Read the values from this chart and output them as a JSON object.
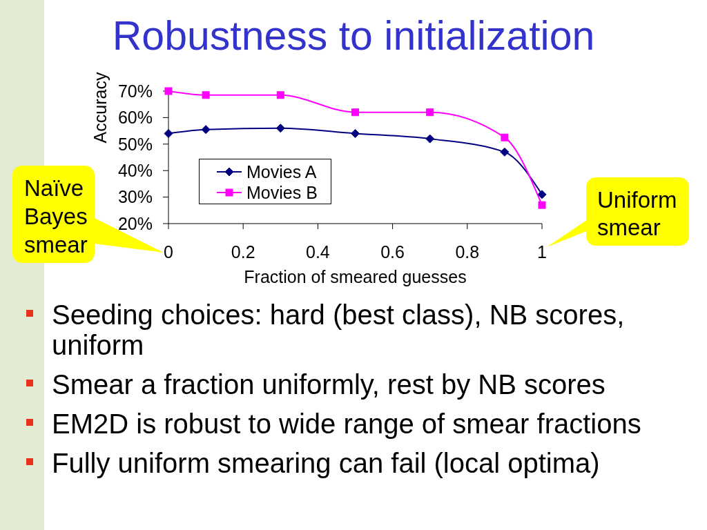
{
  "chart_data": {
    "type": "line",
    "title": "Robustness to initialization",
    "xlabel": "Fraction of smeared guesses",
    "ylabel": "Accuracy",
    "x": [
      0,
      0.1,
      0.3,
      0.5,
      0.7,
      0.9,
      1
    ],
    "series": [
      {
        "name": "Movies A",
        "color": "#000080",
        "marker": "diamond",
        "values": [
          54,
          55.5,
          56,
          54,
          52,
          47,
          31
        ]
      },
      {
        "name": "Movies B",
        "color": "#ff00ff",
        "marker": "square",
        "values": [
          70,
          68.5,
          68.5,
          62,
          62,
          52.5,
          27
        ]
      }
    ],
    "xlim": [
      0,
      1
    ],
    "xticks": [
      0,
      0.2,
      0.4,
      0.6,
      0.8,
      1
    ],
    "ylim": [
      20,
      70
    ],
    "yticks": [
      {
        "value": 20,
        "label": "20%"
      },
      {
        "value": 30,
        "label": "30%"
      },
      {
        "value": 40,
        "label": "40%"
      },
      {
        "value": 50,
        "label": "50%"
      },
      {
        "value": 60,
        "label": "60%"
      },
      {
        "value": 70,
        "label": "70%"
      }
    ],
    "legend": "left",
    "line_style": "solid",
    "annotations": [
      "Naïve Bayes smear",
      "Uniform smear",
      "Seeding choices: hard (best class), NB scores, uniform",
      "Smear a fraction uniformly, rest by NB scores",
      "EM2D is robust to wide range of smear fractions",
      "Fully uniform smearing can fail (local optima)"
    ]
  }
}
